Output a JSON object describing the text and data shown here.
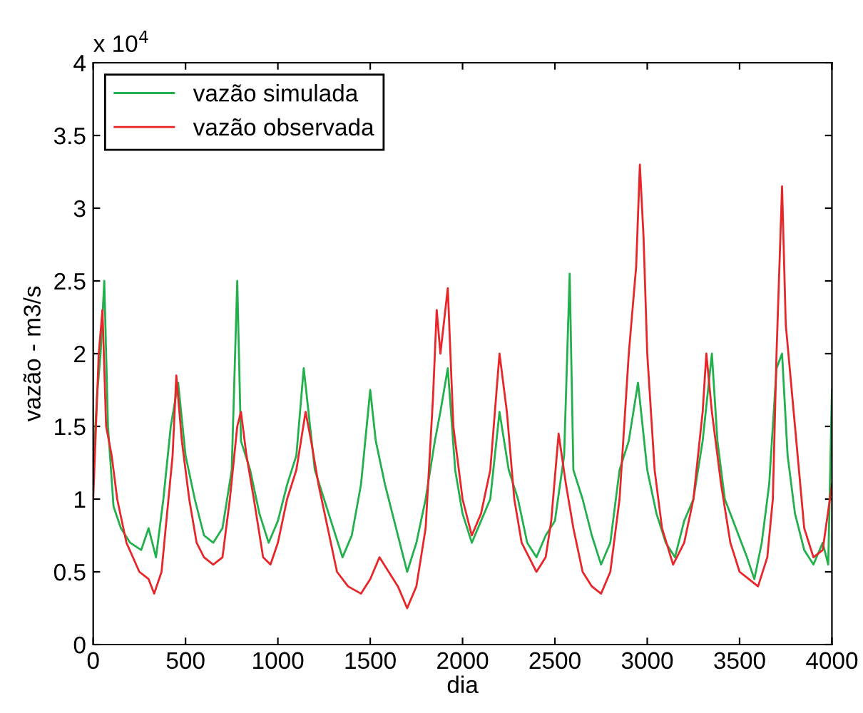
{
  "chart_data": {
    "type": "line",
    "xlabel": "dia",
    "ylabel": "vazão - m3/s",
    "annotations": [
      "x 10$^{4}$"
    ],
    "xlim": [
      0,
      4000
    ],
    "xticks": [
      0,
      500,
      1000,
      1500,
      2000,
      2500,
      3000,
      3500,
      4000
    ],
    "ylim": [
      0,
      4
    ],
    "yticks": [
      0,
      0.5,
      1,
      1.5,
      2,
      2.5,
      3,
      3.5,
      4
    ],
    "grid": false,
    "legend": "top left",
    "marker": "none",
    "line_style": "solid",
    "series": [
      {
        "name": "vazão simulada",
        "color": "#22b04c",
        "x": [
          0,
          20,
          40,
          60,
          80,
          110,
          150,
          200,
          260,
          300,
          340,
          380,
          420,
          460,
          500,
          550,
          600,
          650,
          700,
          750,
          780,
          800,
          850,
          900,
          950,
          1000,
          1050,
          1100,
          1140,
          1200,
          1250,
          1300,
          1350,
          1400,
          1450,
          1500,
          1530,
          1580,
          1620,
          1680,
          1700,
          1750,
          1800,
          1850,
          1880,
          1920,
          1960,
          2000,
          2050,
          2100,
          2150,
          2200,
          2250,
          2300,
          2350,
          2400,
          2450,
          2500,
          2550,
          2580,
          2600,
          2650,
          2700,
          2750,
          2800,
          2850,
          2900,
          2950,
          3000,
          3050,
          3100,
          3150,
          3200,
          3250,
          3300,
          3350,
          3380,
          3420,
          3480,
          3540,
          3580,
          3620,
          3660,
          3700,
          3730,
          3760,
          3800,
          3850,
          3900,
          3950,
          3980,
          4000
        ],
        "values": [
          1.2,
          1.7,
          2.0,
          2.5,
          1.5,
          0.95,
          0.8,
          0.7,
          0.65,
          0.8,
          0.6,
          1.0,
          1.5,
          1.8,
          1.3,
          1.0,
          0.75,
          0.7,
          0.8,
          1.2,
          2.5,
          1.4,
          1.2,
          0.9,
          0.7,
          0.85,
          1.1,
          1.3,
          1.9,
          1.2,
          1.0,
          0.8,
          0.6,
          0.75,
          1.1,
          1.75,
          1.4,
          1.1,
          0.9,
          0.6,
          0.5,
          0.7,
          1.0,
          1.4,
          1.6,
          1.9,
          1.2,
          0.9,
          0.7,
          0.85,
          1.0,
          1.6,
          1.2,
          1.0,
          0.7,
          0.6,
          0.75,
          0.85,
          1.3,
          2.55,
          1.2,
          1.0,
          0.75,
          0.55,
          0.7,
          1.2,
          1.4,
          1.8,
          1.2,
          0.9,
          0.7,
          0.6,
          0.85,
          1.0,
          1.4,
          2.0,
          1.4,
          1.0,
          0.8,
          0.6,
          0.45,
          0.7,
          1.1,
          1.9,
          2.0,
          1.3,
          0.9,
          0.65,
          0.55,
          0.7,
          0.55,
          1.75
        ]
      },
      {
        "name": "vazão observada",
        "color": "#e8262a",
        "x": [
          0,
          30,
          50,
          70,
          100,
          130,
          180,
          250,
          300,
          330,
          370,
          400,
          430,
          450,
          480,
          520,
          560,
          600,
          650,
          700,
          740,
          780,
          800,
          830,
          870,
          920,
          960,
          1000,
          1050,
          1100,
          1150,
          1180,
          1220,
          1270,
          1320,
          1380,
          1450,
          1500,
          1550,
          1600,
          1650,
          1700,
          1750,
          1800,
          1840,
          1860,
          1880,
          1920,
          1950,
          2000,
          2050,
          2100,
          2150,
          2200,
          2240,
          2280,
          2320,
          2360,
          2400,
          2450,
          2480,
          2520,
          2560,
          2600,
          2650,
          2700,
          2750,
          2800,
          2850,
          2900,
          2940,
          2960,
          2980,
          3000,
          3040,
          3080,
          3140,
          3200,
          3250,
          3300,
          3320,
          3350,
          3400,
          3450,
          3500,
          3550,
          3600,
          3650,
          3680,
          3700,
          3730,
          3750,
          3800,
          3850,
          3900,
          3950,
          4000
        ],
        "values": [
          1.0,
          2.0,
          2.3,
          1.5,
          1.3,
          1.0,
          0.7,
          0.5,
          0.45,
          0.35,
          0.5,
          0.9,
          1.3,
          1.85,
          1.4,
          1.0,
          0.7,
          0.6,
          0.55,
          0.6,
          1.0,
          1.5,
          1.6,
          1.3,
          1.0,
          0.6,
          0.55,
          0.7,
          1.0,
          1.2,
          1.6,
          1.4,
          1.1,
          0.8,
          0.5,
          0.4,
          0.35,
          0.45,
          0.6,
          0.5,
          0.4,
          0.25,
          0.4,
          0.8,
          1.7,
          2.3,
          2.0,
          2.45,
          1.5,
          1.0,
          0.75,
          0.9,
          1.2,
          2.0,
          1.6,
          1.0,
          0.7,
          0.6,
          0.5,
          0.6,
          0.85,
          1.45,
          1.1,
          0.8,
          0.5,
          0.4,
          0.35,
          0.5,
          1.0,
          2.0,
          2.6,
          3.3,
          2.8,
          2.0,
          1.2,
          0.8,
          0.55,
          0.7,
          1.0,
          1.6,
          2.0,
          1.6,
          1.1,
          0.7,
          0.5,
          0.45,
          0.4,
          0.6,
          1.0,
          2.0,
          3.15,
          2.2,
          1.5,
          0.8,
          0.6,
          0.65,
          1.1
        ]
      }
    ]
  }
}
